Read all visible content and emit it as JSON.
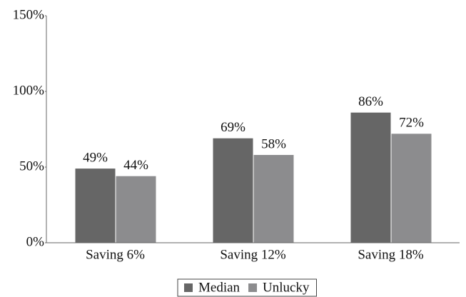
{
  "chart_data": {
    "type": "bar",
    "categories": [
      "Saving 6%",
      "Saving 12%",
      "Saving 18%"
    ],
    "series": [
      {
        "name": "Median",
        "color": "#666666",
        "values": [
          49,
          69,
          86
        ],
        "value_labels": [
          "49%",
          "69%",
          "86%"
        ]
      },
      {
        "name": "Unlucky",
        "color": "#8c8c8e",
        "values": [
          44,
          58,
          72
        ],
        "value_labels": [
          "44%",
          "58%",
          "72%"
        ]
      }
    ],
    "ylim": [
      0,
      150
    ],
    "yticks": [
      {
        "value": 0,
        "label": "0%"
      },
      {
        "value": 50,
        "label": "50%"
      },
      {
        "value": 100,
        "label": "100%"
      },
      {
        "value": 150,
        "label": "150%"
      }
    ],
    "grid": false,
    "legend": "bottom"
  }
}
